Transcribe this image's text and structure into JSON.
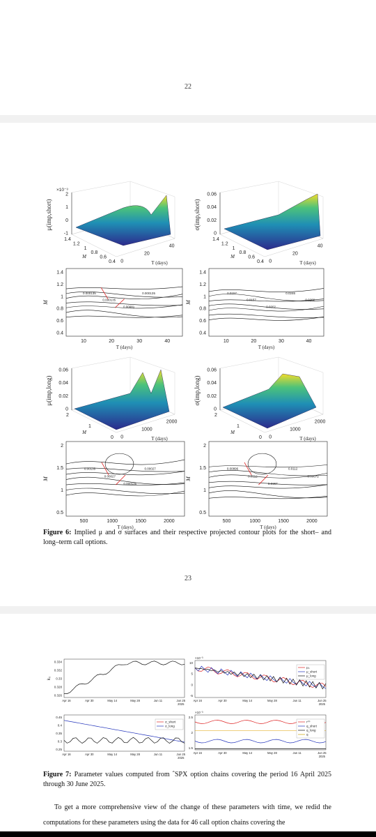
{
  "page22": {
    "number": "22"
  },
  "page23": {
    "number": "23",
    "figure": {
      "label": "Figure 6:",
      "caption": "Implied μ and σ surfaces and their respective projected contour plots for the short– and long–term call options.",
      "panels": [
        {
          "multiplier": "×10⁻³",
          "zlabel": "μ(imp,short)",
          "zticks": [
            "2",
            "1",
            "0",
            "-1"
          ],
          "mlabel": "M",
          "mticks": [
            "1.4",
            "1.2",
            "1",
            "0.8",
            "0.6",
            "0.4"
          ],
          "tlabel": "T (days)",
          "tticks": [
            "0",
            "20",
            "40"
          ]
        },
        {
          "zlabel": "σ(imp,short)",
          "zticks": [
            "0.06",
            "0.04",
            "0.02",
            "0"
          ],
          "mlabel": "M",
          "mticks": [
            "1.4",
            "1.2",
            "1",
            "0.8",
            "0.6",
            "0.4"
          ],
          "tlabel": "T (days)",
          "tticks": [
            "0",
            "20",
            "40"
          ]
        },
        {
          "ylabel": "M",
          "yticks": [
            "1.4",
            "1.2",
            "1",
            "0.8",
            "0.6",
            "0.4"
          ],
          "xlabel": "T (days)",
          "xticks": [
            "10",
            "20",
            "30",
            "40"
          ],
          "contour_labels": [
            "0.000135",
            "0.000135",
            "0.00081",
            "0.000135"
          ]
        },
        {
          "ylabel": "M",
          "yticks": [
            "1.4",
            "1.2",
            "1",
            "0.8",
            "0.6",
            "0.4"
          ],
          "xlabel": "T (days)",
          "xticks": [
            "10",
            "20",
            "30",
            "40"
          ],
          "contour_labels": [
            "0.0157",
            "0.0157",
            "0.0202",
            "0.0246",
            "0.0202"
          ]
        },
        {
          "zlabel": "μ(imp,long)",
          "zticks": [
            "0.06",
            "0.04",
            "0.02",
            "0"
          ],
          "mlabel": "M",
          "mticks": [
            "2",
            "1",
            "0"
          ],
          "tlabel": "T (days)",
          "tticks": [
            "0",
            "1000",
            "2000"
          ]
        },
        {
          "zlabel": "σ(imp,long)",
          "zticks": [
            "0.06",
            "0.04",
            "0.02",
            "0"
          ],
          "mlabel": "M",
          "mticks": [
            "2",
            "1",
            "0"
          ],
          "tlabel": "T (days)",
          "tticks": [
            "0",
            "1000",
            "2000"
          ]
        },
        {
          "ylabel": "M",
          "yticks": [
            "2",
            "1.5",
            "1",
            "0.5"
          ],
          "xlabel": "T (days)",
          "xticks": [
            "500",
            "1000",
            "1500",
            "2000"
          ],
          "contour_labels": [
            "0.00135",
            "0.00027",
            "0.000135",
            "0.00027"
          ]
        },
        {
          "ylabel": "M",
          "yticks": [
            "2",
            "1.5",
            "1",
            "0.5"
          ],
          "xlabel": "T (days)",
          "xticks": [
            "500",
            "1000",
            "1500",
            "2000"
          ],
          "contour_labels": [
            "0.00896",
            "0.0112",
            "0.0157",
            "0.0112",
            "0.00672"
          ]
        }
      ]
    }
  },
  "page24": {
    "figure": {
      "label": "Figure 7:",
      "caption": "Parameter values computed from ˆSPX option chains covering the period 16 April 2025 through 30 June 2025.",
      "panels": [
        {
          "ylabel": "k₀",
          "yticks": [
            "0.334",
            "0.332",
            "0.33",
            "0.328",
            "0.326"
          ],
          "xticks": [
            "Apr 16",
            "Apr 30",
            "May 14",
            "May 28",
            "Jun 11",
            "Jun 25"
          ],
          "year": "2025"
        },
        {
          "multiplier": "×10⁻³",
          "yticks": [
            "10",
            "5",
            "0",
            "-5"
          ],
          "xticks": [
            "Apr 16",
            "Apr 30",
            "May 14",
            "May 28",
            "Jun 11",
            "Jun 25"
          ],
          "year": "2025",
          "legend": [
            "μ₀",
            "μ_short",
            "μ_long"
          ]
        },
        {
          "yticks": [
            "0.45",
            "0.4",
            "0.35",
            "0.3",
            "0.25"
          ],
          "xticks": [
            "Apr 16",
            "Apr 30",
            "May 14",
            "May 28",
            "Jun 11",
            "Jun 25"
          ],
          "year": "2025",
          "legend": [
            "σ_short",
            "σ_long"
          ]
        },
        {
          "multiplier": "×10⁻³",
          "yticks": [
            "2.5",
            "2",
            "1.5"
          ],
          "xticks": [
            "Apr 16",
            "Apr 30",
            "May 14",
            "May 28",
            "Jun 11",
            "Jun 25"
          ],
          "year": "2025",
          "legend": [
            "r⁽⁰⁾",
            "q_short",
            "q_long",
            "q"
          ]
        }
      ]
    },
    "body": "To get a more comprehensive view of the change of these parameters with time, we redid the computations for these parameters using the data for 46 call option chains covering the"
  }
}
